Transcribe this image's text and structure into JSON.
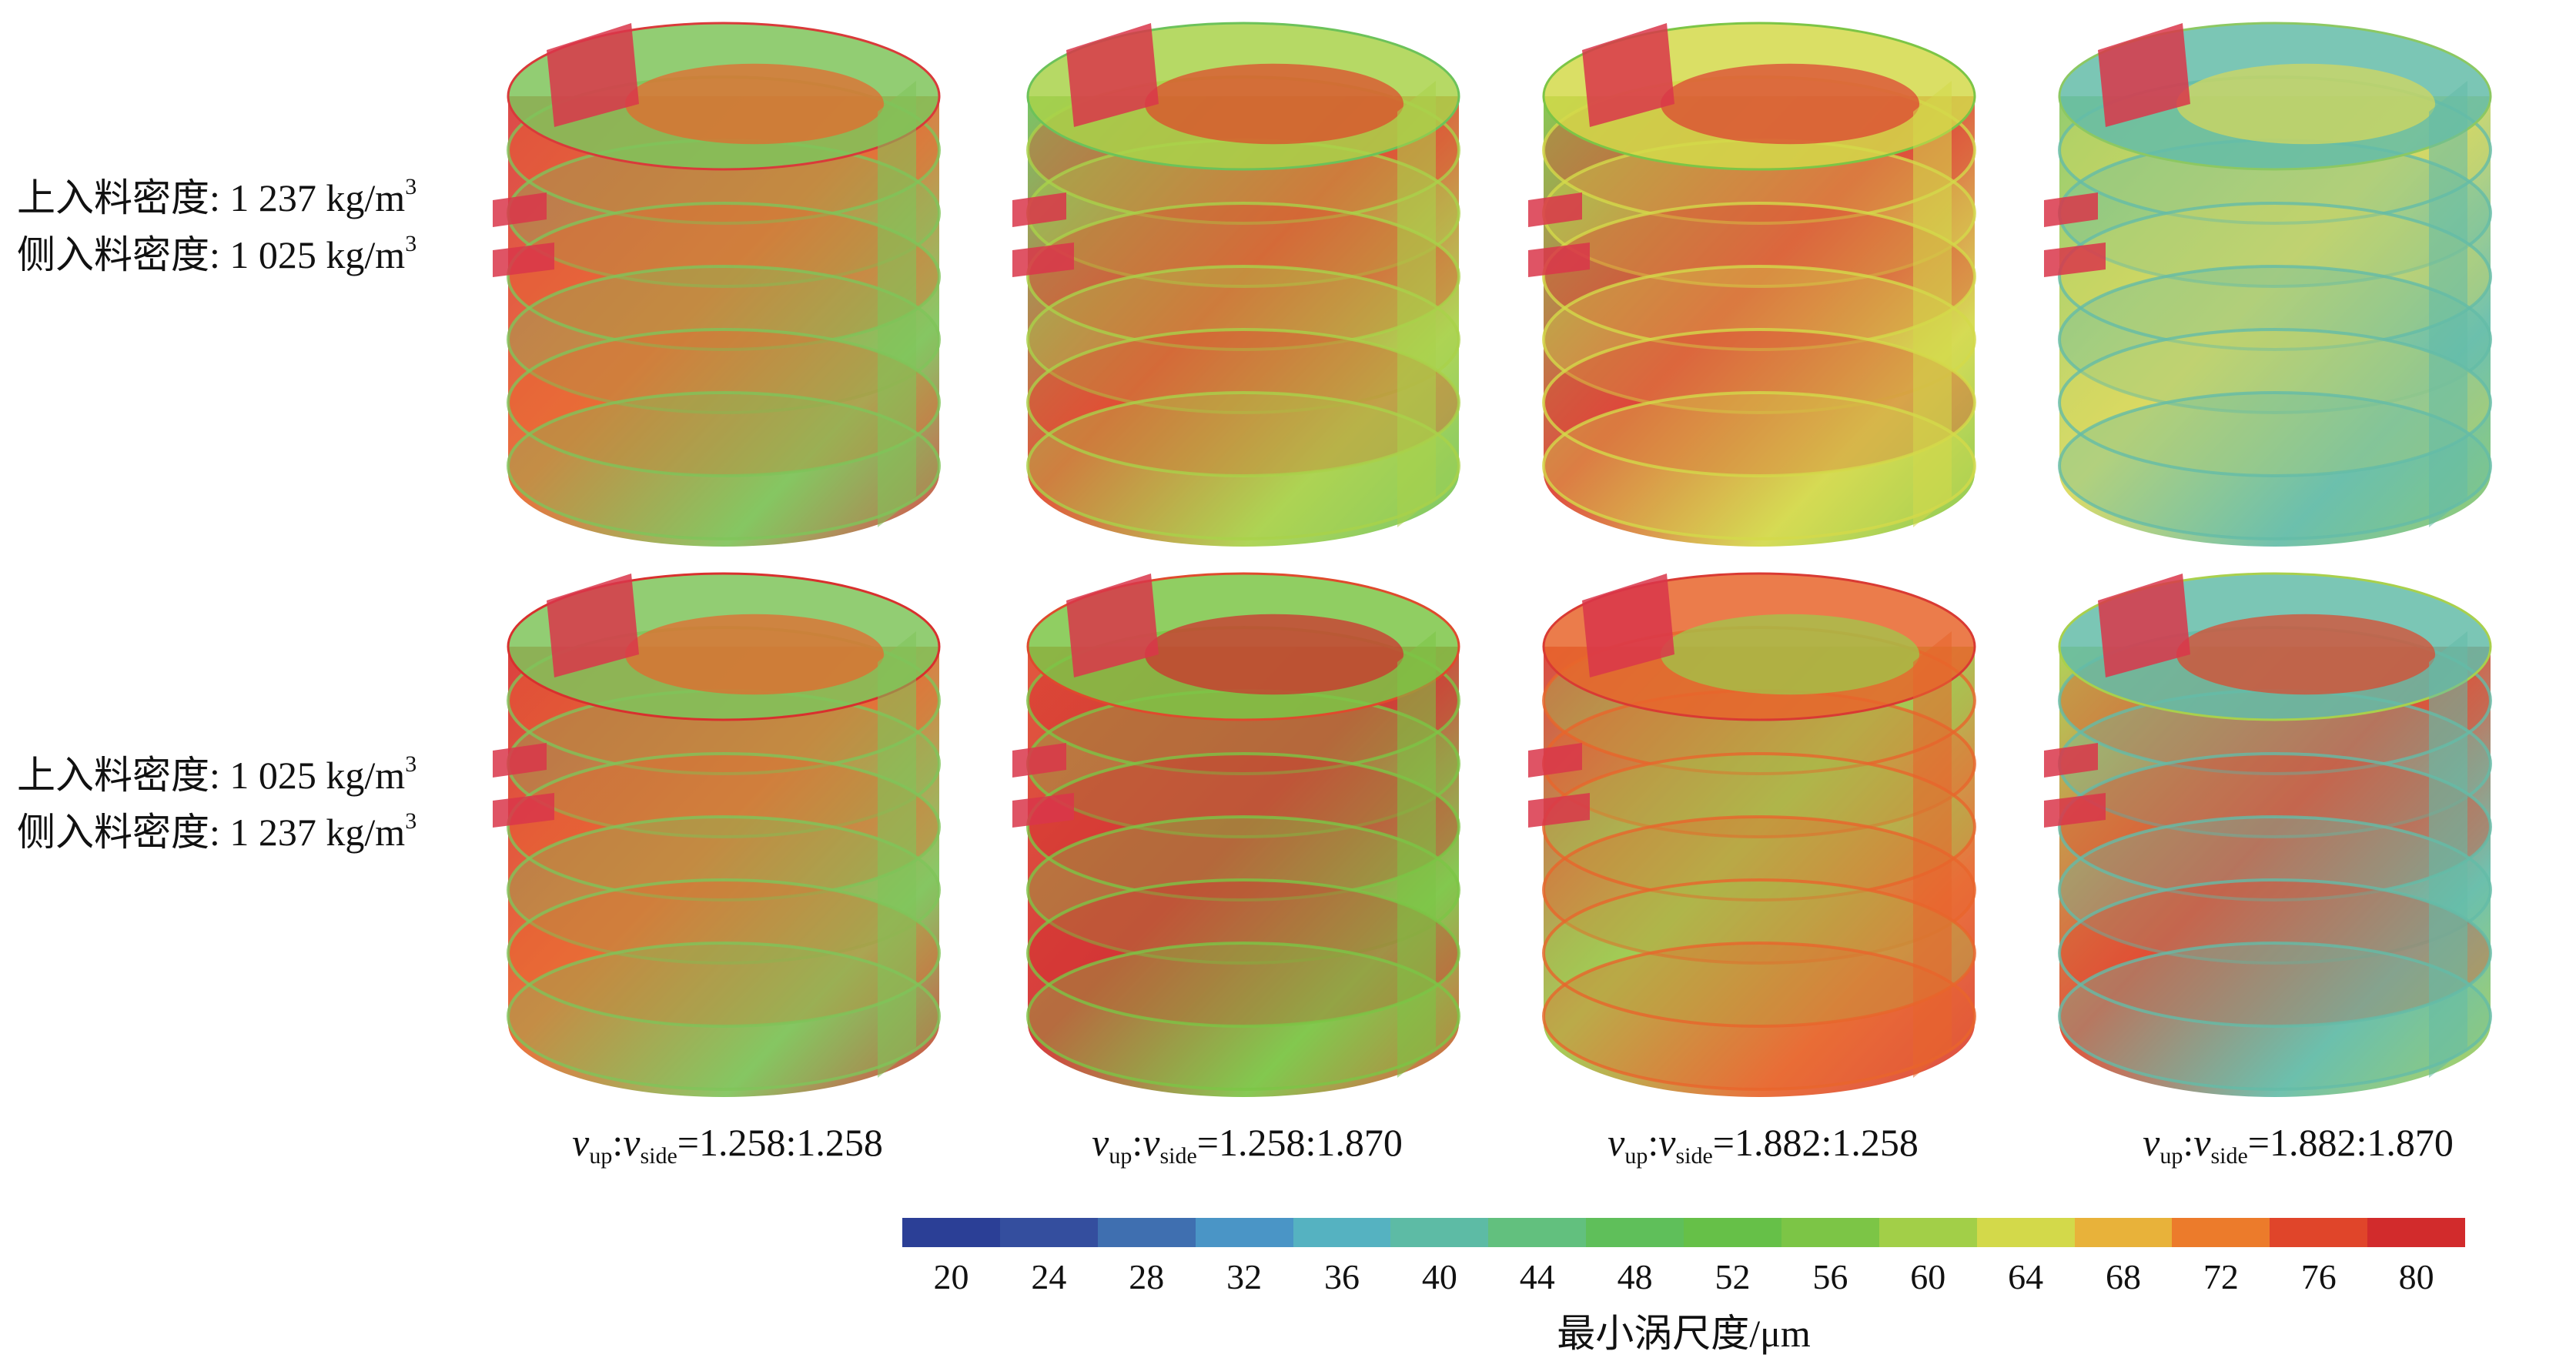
{
  "rows": [
    {
      "line1": {
        "prefix": "上入料密度: 1 237 kg/m",
        "sup": "3"
      },
      "line2": {
        "prefix": "侧入料密度: 1 025 kg/m",
        "sup": "3"
      }
    },
    {
      "line1": {
        "prefix": "上入料密度: 1 025 kg/m",
        "sup": "3"
      },
      "line2": {
        "prefix": "侧入料密度: 1 237 kg/m",
        "sup": "3"
      }
    }
  ],
  "columns": [
    {
      "v": "v",
      "sub_up": "up",
      "sep": ":",
      "sub_side": "side",
      "ratio": "=1.258:1.258"
    },
    {
      "v": "v",
      "sub_up": "up",
      "sep": ":",
      "sub_side": "side",
      "ratio": "=1.258:1.870"
    },
    {
      "v": "v",
      "sub_up": "up",
      "sep": ":",
      "sub_side": "side",
      "ratio": "=1.882:1.258"
    },
    {
      "v": "v",
      "sub_up": "up",
      "sep": ":",
      "sub_side": "side",
      "ratio": "=1.882:1.870"
    }
  ],
  "colorbar": {
    "title": "最小涡尺度/μm",
    "ticks": [
      "20",
      "24",
      "28",
      "32",
      "36",
      "40",
      "44",
      "48",
      "52",
      "56",
      "60",
      "64",
      "68",
      "72",
      "76",
      "80"
    ],
    "range": [
      18,
      82
    ],
    "colors": [
      "#2b3f96",
      "#344e9e",
      "#3f6fb0",
      "#4a95c6",
      "#55b2c1",
      "#5dbba5",
      "#62c07e",
      "#5fbf5a",
      "#66c048",
      "#7cc546",
      "#a2cf48",
      "#d3d94a",
      "#e8b23a",
      "#ec7b2b",
      "#e0452a",
      "#d22b2c"
    ]
  },
  "panels": [
    {
      "row": 0,
      "col": 0,
      "base": "#d93a3a",
      "accent": "#e8652c",
      "secondary": "#7fc45a"
    },
    {
      "row": 0,
      "col": 1,
      "base": "#6cc25a",
      "accent": "#e0452a",
      "secondary": "#a9d24a"
    },
    {
      "row": 0,
      "col": 2,
      "base": "#7cc546",
      "accent": "#dd3d30",
      "secondary": "#d3d94a"
    },
    {
      "row": 0,
      "col": 3,
      "base": "#8cc862",
      "accent": "#d9d85a",
      "secondary": "#64bca8"
    },
    {
      "row": 1,
      "col": 0,
      "base": "#d8302e",
      "accent": "#e8652c",
      "secondary": "#7fc45a"
    },
    {
      "row": 1,
      "col": 1,
      "base": "#df4a2d",
      "accent": "#d22b2c",
      "secondary": "#7cc546"
    },
    {
      "row": 1,
      "col": 2,
      "base": "#d93a33",
      "accent": "#9bcc4c",
      "secondary": "#e8652c"
    },
    {
      "row": 1,
      "col": 3,
      "base": "#a9d04c",
      "accent": "#e0452a",
      "secondary": "#64bca8"
    }
  ]
}
